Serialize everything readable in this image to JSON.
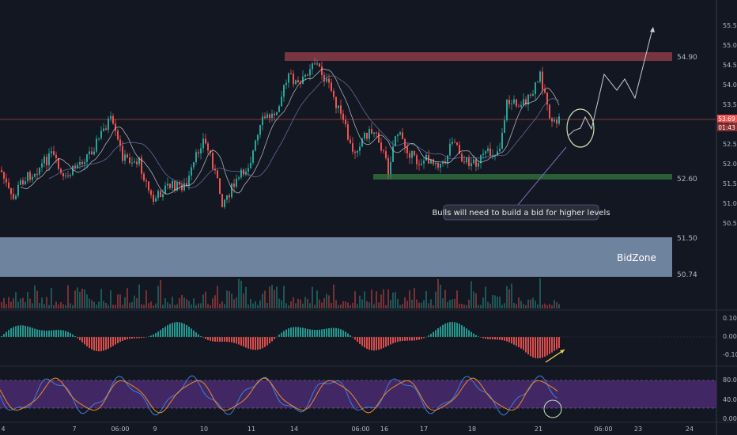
{
  "chart_data": {
    "type": "candlestick",
    "colors": {
      "background": "#131722",
      "bull": "#26a69a",
      "bear": "#ef5350",
      "resistance_zone": "#8a3a46",
      "support_zone": "#2f6b3a",
      "bid_zone": "#7f97b3",
      "projection": "#c8ccd4",
      "stoch_band": "#4a2a6e"
    },
    "price_axis": {
      "ticks": [
        "55.50",
        "55.00",
        "54.50",
        "54.00",
        "53.50",
        "53.00",
        "52.50",
        "52.00",
        "51.50",
        "51.00",
        "50.50"
      ],
      "ylim": [
        50.2,
        55.75
      ]
    },
    "current_price": {
      "value": "53.69",
      "countdown": "01:43"
    },
    "levels": [
      {
        "name": "resistance",
        "label": "54.90",
        "price": 54.9
      },
      {
        "name": "support",
        "label": "52.60",
        "price": 52.6
      },
      {
        "name": "bidzone-top",
        "label": "51.50",
        "price": 51.5
      },
      {
        "name": "bidzone-bottom",
        "label": "50.74",
        "price": 50.74
      }
    ],
    "bid_zone_label": "BidZone",
    "annotation": "Bulls will need to build a bid for higher levels",
    "time_axis": [
      "4",
      "7",
      "06:00",
      "9",
      "10",
      "11",
      "14",
      "06:00",
      "16",
      "17",
      "18",
      "21",
      "06:00",
      "23",
      "24"
    ],
    "macd_axis": [
      "0.10",
      "0.00",
      "-0.10"
    ],
    "stoch_axis": [
      "80.00",
      "40.00",
      "0.00"
    ]
  }
}
